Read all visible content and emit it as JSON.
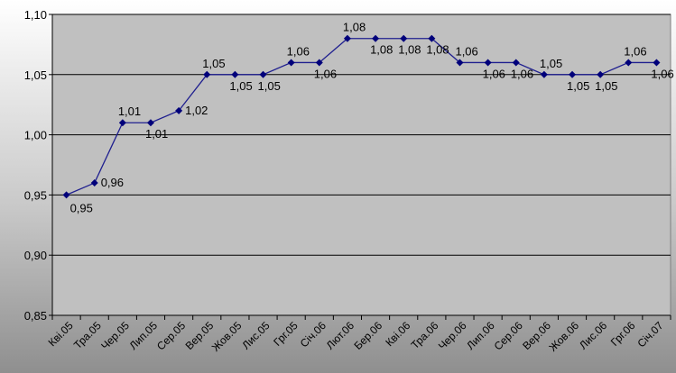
{
  "chart_data": {
    "type": "line",
    "title": "",
    "xlabel": "",
    "ylabel": "",
    "ylim": [
      0.85,
      1.1
    ],
    "yticks": [
      "0,85",
      "0,90",
      "0,95",
      "1,00",
      "1,05",
      "1,10"
    ],
    "grid": true,
    "legend": "none",
    "categories": [
      "Кві.05",
      "Тра.05",
      "Чер.05",
      "Лип.05",
      "Сер.05",
      "Вер.05",
      "Жов.05",
      "Лис.05",
      "Грг.05",
      "Січ.06",
      "Лют.06",
      "Бер.06",
      "Кві.06",
      "Тра.06",
      "Чер.06",
      "Лип.06",
      "Сер.06",
      "Вер.06",
      "Жов.06",
      "Лис.06",
      "Грг.06",
      "Січ.07"
    ],
    "values": [
      0.95,
      0.96,
      1.01,
      1.01,
      1.02,
      1.05,
      1.05,
      1.05,
      1.06,
      1.06,
      1.08,
      1.08,
      1.08,
      1.08,
      1.06,
      1.06,
      1.06,
      1.05,
      1.05,
      1.05,
      1.06,
      1.06
    ],
    "data_labels": [
      "0,95",
      "0,96",
      "1,01",
      "1,01",
      "1,02",
      "1,05",
      "1,05",
      "1,05",
      "1,06",
      "1,06",
      "1,08",
      "1,08",
      "1,08",
      "1,08",
      "1,06",
      "1,06",
      "1,06",
      "1,05",
      "1,05",
      "1,05",
      "1,06",
      "1,06"
    ],
    "colors": {
      "line": "#1f1f8f",
      "marker": "#00007a",
      "plot_bg": "#c0c0c0",
      "grid": "#000000"
    }
  }
}
